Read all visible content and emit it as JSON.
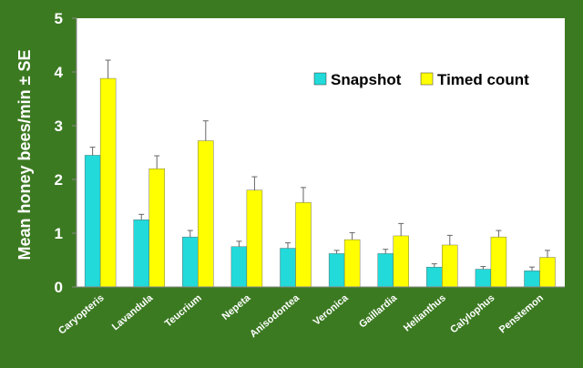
{
  "chart_data": {
    "type": "bar",
    "ylabel": "Mean honey bees/min ± SE",
    "xlabel": "",
    "ylim": [
      0,
      5
    ],
    "yticks": [
      "0",
      "1",
      "2",
      "3",
      "4",
      "5"
    ],
    "grid": false,
    "legend_position": "top-right",
    "categories": [
      "Caryopteris",
      "Lavandula",
      "Teucrium",
      "Nepeta",
      "Anisodontea",
      "Veronica",
      "Gaillardia",
      "Helianthus",
      "Calylophus",
      "Penstemon"
    ],
    "series": [
      {
        "name": "Snapshot",
        "color": "#22dada",
        "values": [
          2.45,
          1.25,
          0.93,
          0.75,
          0.72,
          0.62,
          0.62,
          0.37,
          0.33,
          0.3
        ],
        "se": [
          0.15,
          0.1,
          0.12,
          0.1,
          0.1,
          0.06,
          0.08,
          0.06,
          0.05,
          0.07
        ]
      },
      {
        "name": "Timed count",
        "color": "#ffff00",
        "values": [
          3.88,
          2.2,
          2.72,
          1.8,
          1.57,
          0.88,
          0.95,
          0.78,
          0.93,
          0.55
        ],
        "se": [
          0.34,
          0.24,
          0.37,
          0.25,
          0.28,
          0.13,
          0.23,
          0.18,
          0.12,
          0.13
        ]
      }
    ]
  }
}
